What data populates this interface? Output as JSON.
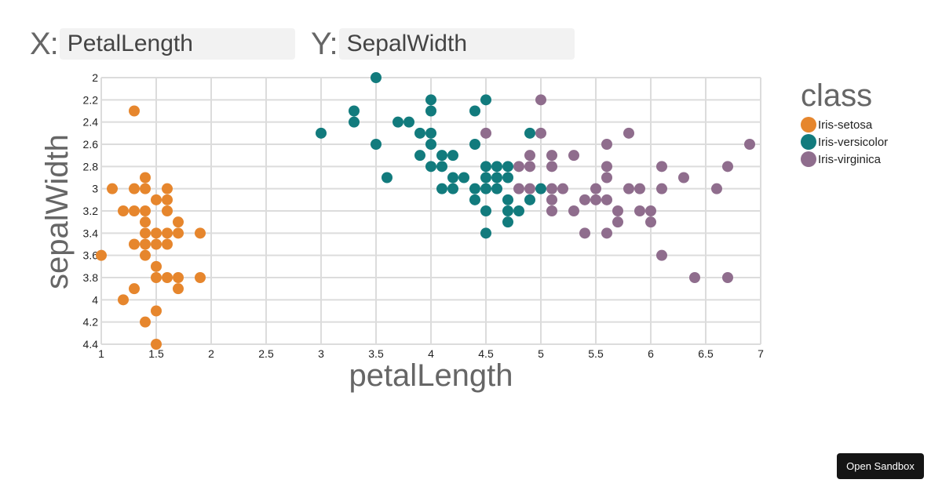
{
  "selectors": {
    "x": {
      "label": "X:",
      "value": "PetalLength"
    },
    "y": {
      "label": "Y:",
      "value": "SepalWidth"
    }
  },
  "legend": {
    "title": "class",
    "items": [
      {
        "label": "Iris-setosa",
        "color": "#e6862d"
      },
      {
        "label": "Iris-versicolor",
        "color": "#127b7d"
      },
      {
        "label": "Iris-virginica",
        "color": "#8f6d8d"
      }
    ]
  },
  "sandbox_button": {
    "label": "Open Sandbox"
  },
  "chart_data": {
    "type": "scatter",
    "title": "",
    "xlabel": "petalLength",
    "ylabel": "sepalWidth",
    "xlim": [
      1,
      7
    ],
    "ylim": [
      2,
      4.4
    ],
    "y_inverted": true,
    "grid": true,
    "legend_position": "right",
    "x_ticks": [
      "1",
      "1.5",
      "2",
      "2.5",
      "3",
      "3.5",
      "4",
      "4.5",
      "5",
      "5.5",
      "6",
      "6.5",
      "7"
    ],
    "y_ticks": [
      "2",
      "2.2",
      "2.4",
      "2.6",
      "2.8",
      "3",
      "3.2",
      "3.4",
      "3.6",
      "3.8",
      "4",
      "4.2",
      "4.4"
    ],
    "series": [
      {
        "name": "Iris-setosa",
        "color": "#e6862d",
        "points": [
          [
            1.3,
            2.3
          ],
          [
            1.4,
            2.9
          ],
          [
            1.1,
            3.0
          ],
          [
            1.3,
            3.0
          ],
          [
            1.4,
            3.0
          ],
          [
            1.6,
            3.0
          ],
          [
            1.5,
            3.1
          ],
          [
            1.6,
            3.1
          ],
          [
            1.2,
            3.2
          ],
          [
            1.3,
            3.2
          ],
          [
            1.4,
            3.2
          ],
          [
            1.6,
            3.2
          ],
          [
            1.4,
            3.3
          ],
          [
            1.7,
            3.3
          ],
          [
            1.4,
            3.4
          ],
          [
            1.5,
            3.4
          ],
          [
            1.6,
            3.4
          ],
          [
            1.7,
            3.4
          ],
          [
            1.9,
            3.4
          ],
          [
            1.3,
            3.5
          ],
          [
            1.4,
            3.5
          ],
          [
            1.5,
            3.5
          ],
          [
            1.6,
            3.5
          ],
          [
            1.0,
            3.6
          ],
          [
            1.4,
            3.6
          ],
          [
            1.5,
            3.7
          ],
          [
            1.5,
            3.8
          ],
          [
            1.6,
            3.8
          ],
          [
            1.7,
            3.8
          ],
          [
            1.9,
            3.8
          ],
          [
            1.3,
            3.9
          ],
          [
            1.7,
            3.9
          ],
          [
            1.2,
            4.0
          ],
          [
            1.5,
            4.1
          ],
          [
            1.4,
            4.2
          ],
          [
            1.5,
            4.4
          ]
        ]
      },
      {
        "name": "Iris-versicolor",
        "color": "#127b7d",
        "points": [
          [
            3.5,
            2.0
          ],
          [
            4.0,
            2.2
          ],
          [
            4.5,
            2.2
          ],
          [
            3.3,
            2.3
          ],
          [
            4.0,
            2.3
          ],
          [
            4.4,
            2.3
          ],
          [
            3.3,
            2.4
          ],
          [
            3.7,
            2.4
          ],
          [
            3.8,
            2.4
          ],
          [
            3.0,
            2.5
          ],
          [
            3.9,
            2.5
          ],
          [
            4.0,
            2.5
          ],
          [
            4.9,
            2.5
          ],
          [
            3.5,
            2.6
          ],
          [
            4.0,
            2.6
          ],
          [
            4.4,
            2.6
          ],
          [
            3.9,
            2.7
          ],
          [
            4.1,
            2.7
          ],
          [
            4.2,
            2.7
          ],
          [
            4.0,
            2.8
          ],
          [
            4.1,
            2.8
          ],
          [
            4.5,
            2.8
          ],
          [
            4.6,
            2.8
          ],
          [
            4.7,
            2.8
          ],
          [
            3.6,
            2.9
          ],
          [
            4.2,
            2.9
          ],
          [
            4.3,
            2.9
          ],
          [
            4.5,
            2.9
          ],
          [
            4.6,
            2.9
          ],
          [
            4.7,
            2.9
          ],
          [
            4.1,
            3.0
          ],
          [
            4.2,
            3.0
          ],
          [
            4.4,
            3.0
          ],
          [
            4.5,
            3.0
          ],
          [
            4.6,
            3.0
          ],
          [
            5.0,
            3.0
          ],
          [
            4.4,
            3.1
          ],
          [
            4.7,
            3.1
          ],
          [
            4.9,
            3.1
          ],
          [
            4.5,
            3.2
          ],
          [
            4.7,
            3.2
          ],
          [
            4.8,
            3.2
          ],
          [
            4.7,
            3.3
          ],
          [
            4.5,
            3.4
          ]
        ]
      },
      {
        "name": "Iris-virginica",
        "color": "#8f6d8d",
        "points": [
          [
            5.0,
            2.2
          ],
          [
            4.5,
            2.5
          ],
          [
            5.0,
            2.5
          ],
          [
            5.8,
            2.5
          ],
          [
            5.6,
            2.6
          ],
          [
            6.9,
            2.6
          ],
          [
            4.9,
            2.7
          ],
          [
            5.1,
            2.7
          ],
          [
            5.3,
            2.7
          ],
          [
            4.8,
            2.8
          ],
          [
            4.9,
            2.8
          ],
          [
            5.1,
            2.8
          ],
          [
            5.6,
            2.8
          ],
          [
            6.1,
            2.8
          ],
          [
            6.7,
            2.8
          ],
          [
            5.6,
            2.9
          ],
          [
            6.3,
            2.9
          ],
          [
            4.8,
            3.0
          ],
          [
            4.9,
            3.0
          ],
          [
            5.1,
            3.0
          ],
          [
            5.2,
            3.0
          ],
          [
            5.5,
            3.0
          ],
          [
            5.8,
            3.0
          ],
          [
            5.9,
            3.0
          ],
          [
            6.1,
            3.0
          ],
          [
            6.6,
            3.0
          ],
          [
            5.1,
            3.1
          ],
          [
            5.4,
            3.1
          ],
          [
            5.5,
            3.1
          ],
          [
            5.6,
            3.1
          ],
          [
            5.1,
            3.2
          ],
          [
            5.3,
            3.2
          ],
          [
            5.7,
            3.2
          ],
          [
            5.9,
            3.2
          ],
          [
            6.0,
            3.2
          ],
          [
            5.7,
            3.3
          ],
          [
            6.0,
            3.3
          ],
          [
            5.4,
            3.4
          ],
          [
            5.6,
            3.4
          ],
          [
            6.1,
            3.6
          ],
          [
            6.4,
            3.8
          ],
          [
            6.7,
            3.8
          ]
        ]
      }
    ]
  }
}
